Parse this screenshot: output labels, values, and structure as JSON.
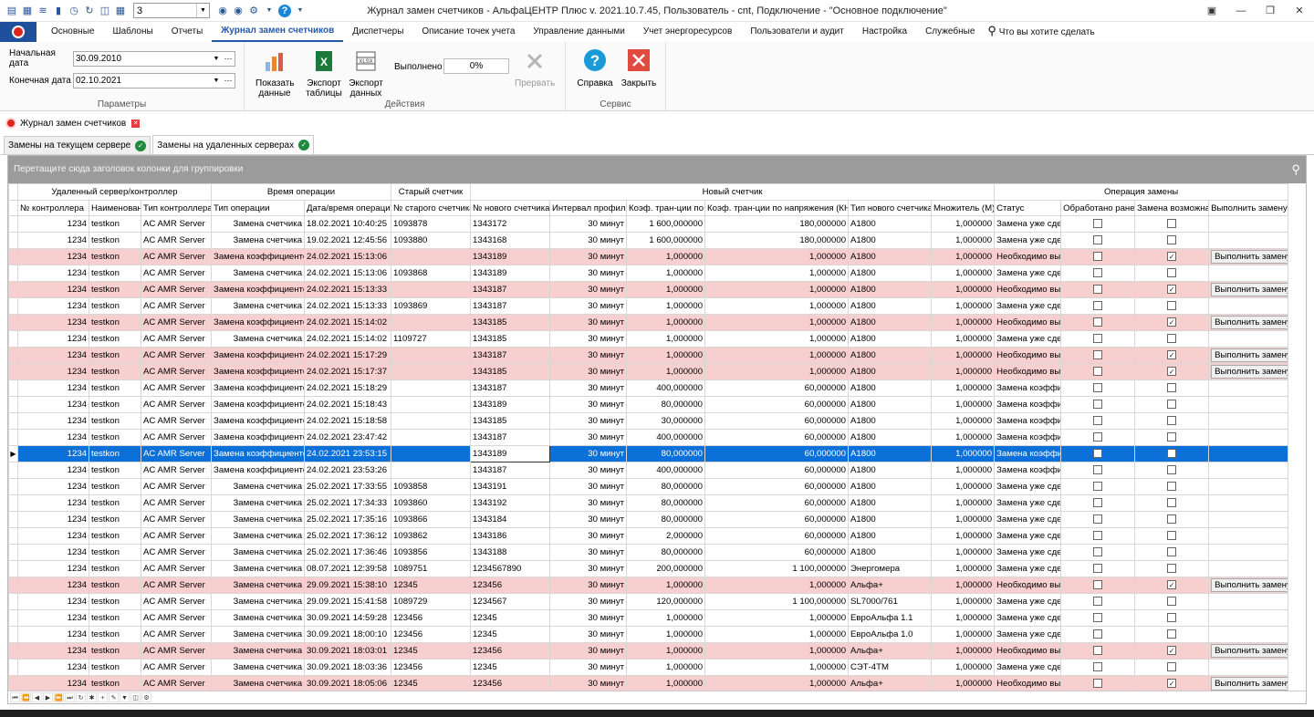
{
  "window": {
    "title": "Журнал замен счетчиков - АльфаЦЕНТР Плюс v. 2021.10.7.45, Пользователь - cnt, Подключение - \"Основное подключение\"",
    "quick_combo_value": "3"
  },
  "menu": {
    "tabs": [
      "Основные",
      "Шаблоны",
      "Отчеты",
      "Журнал замен счетчиков",
      "Диспетчеры",
      "Описание точек учета",
      "Управление данными",
      "Учет энергоресурсов",
      "Пользователи и аудит",
      "Настройка",
      "Служебные"
    ],
    "search_placeholder": "Что вы хотите сделать"
  },
  "ribbon": {
    "params": {
      "start_label": "Начальная дата",
      "start_value": "30.09.2010",
      "end_label": "Конечная дата",
      "end_value": "02.10.2021",
      "group_label": "Параметры"
    },
    "actions": {
      "show_data": "Показать данные",
      "export_table": "Экспорт таблицы",
      "export_data": "Экспорт данных",
      "done_label": "Выполнено",
      "progress": "0%",
      "abort": "Прервать",
      "group_label": "Действия"
    },
    "service": {
      "help": "Справка",
      "close": "Закрыть",
      "group_label": "Сервис"
    }
  },
  "doc_tab": "Журнал замен счетчиков",
  "sub_tabs": [
    "Замены на текущем сервере",
    "Замены на удаленных серверах"
  ],
  "grid": {
    "group_panel_text": "Перетащите сюда заголовок колонки для группировки",
    "bands": [
      "Удаленный сервер/контроллер",
      "Время операции",
      "Старый счетчик",
      "Новый счетчик",
      "Операция замены"
    ],
    "columns": [
      "№ контроллера",
      "Наименован",
      "Тип контроллера",
      "Тип операции",
      "Дата/время операции",
      "№ старого счетчика",
      "№ нового счетчика",
      "Интервал профиля",
      "Коэф. тран-ции по т",
      "Коэф. тран-ции по напряжения (КН)",
      "Тип нового счетчика",
      "Множитель (М)",
      "Статус",
      "Обработано ранее",
      "Замена возможна",
      "Выполнить замену"
    ],
    "button_label": "Выполнить замену",
    "colors": {
      "pink": "#f8cfcf",
      "selected": "#0b71d9"
    },
    "rows": [
      {
        "c": [
          "1234",
          "testkon",
          "AC AMR Server",
          "Замена счетчика",
          "18.02.2021 10:40:25",
          "1093878",
          "1343172",
          "30 минут",
          "1 600,000000",
          "180,000000",
          "A1800",
          "1,000000",
          "Замена уже сдел"
        ],
        "proc": false,
        "poss": false,
        "btn": false,
        "style": "normal"
      },
      {
        "c": [
          "1234",
          "testkon",
          "AC AMR Server",
          "Замена счетчика",
          "19.02.2021 12:45:56",
          "1093880",
          "1343168",
          "30 минут",
          "1 600,000000",
          "180,000000",
          "A1800",
          "1,000000",
          "Замена уже сдел"
        ],
        "proc": false,
        "poss": false,
        "btn": false,
        "style": "normal"
      },
      {
        "c": [
          "1234",
          "testkon",
          "AC AMR Server",
          "Замена коэффициентов",
          "24.02.2021 15:13:06",
          "",
          "1343189",
          "30 минут",
          "1,000000",
          "1,000000",
          "A1800",
          "1,000000",
          "Необходимо вы"
        ],
        "proc": false,
        "poss": true,
        "btn": true,
        "style": "pink"
      },
      {
        "c": [
          "1234",
          "testkon",
          "AC AMR Server",
          "Замена счетчика",
          "24.02.2021 15:13:06",
          "1093868",
          "1343189",
          "30 минут",
          "1,000000",
          "1,000000",
          "A1800",
          "1,000000",
          "Замена уже сдел"
        ],
        "proc": false,
        "poss": false,
        "btn": false,
        "style": "normal"
      },
      {
        "c": [
          "1234",
          "testkon",
          "AC AMR Server",
          "Замена коэффициентов",
          "24.02.2021 15:13:33",
          "",
          "1343187",
          "30 минут",
          "1,000000",
          "1,000000",
          "A1800",
          "1,000000",
          "Необходимо вы"
        ],
        "proc": false,
        "poss": true,
        "btn": true,
        "style": "pink"
      },
      {
        "c": [
          "1234",
          "testkon",
          "AC AMR Server",
          "Замена счетчика",
          "24.02.2021 15:13:33",
          "1093869",
          "1343187",
          "30 минут",
          "1,000000",
          "1,000000",
          "A1800",
          "1,000000",
          "Замена уже сдел"
        ],
        "proc": false,
        "poss": false,
        "btn": false,
        "style": "normal"
      },
      {
        "c": [
          "1234",
          "testkon",
          "AC AMR Server",
          "Замена коэффициентов",
          "24.02.2021 15:14:02",
          "",
          "1343185",
          "30 минут",
          "1,000000",
          "1,000000",
          "A1800",
          "1,000000",
          "Необходимо вы"
        ],
        "proc": false,
        "poss": true,
        "btn": true,
        "style": "pink"
      },
      {
        "c": [
          "1234",
          "testkon",
          "AC AMR Server",
          "Замена счетчика",
          "24.02.2021 15:14:02",
          "1109727",
          "1343185",
          "30 минут",
          "1,000000",
          "1,000000",
          "A1800",
          "1,000000",
          "Замена уже сдел"
        ],
        "proc": false,
        "poss": false,
        "btn": false,
        "style": "normal"
      },
      {
        "c": [
          "1234",
          "testkon",
          "AC AMR Server",
          "Замена коэффициентов",
          "24.02.2021 15:17:29",
          "",
          "1343187",
          "30 минут",
          "1,000000",
          "1,000000",
          "A1800",
          "1,000000",
          "Необходимо вы"
        ],
        "proc": false,
        "poss": true,
        "btn": true,
        "style": "pink"
      },
      {
        "c": [
          "1234",
          "testkon",
          "AC AMR Server",
          "Замена коэффициентов",
          "24.02.2021 15:17:37",
          "",
          "1343185",
          "30 минут",
          "1,000000",
          "1,000000",
          "A1800",
          "1,000000",
          "Необходимо вы"
        ],
        "proc": false,
        "poss": true,
        "btn": true,
        "style": "pink"
      },
      {
        "c": [
          "1234",
          "testkon",
          "AC AMR Server",
          "Замена коэффициентов",
          "24.02.2021 15:18:29",
          "",
          "1343187",
          "30 минут",
          "400,000000",
          "60,000000",
          "A1800",
          "1,000000",
          "Замена коэффи"
        ],
        "proc": false,
        "poss": false,
        "btn": false,
        "style": "normal"
      },
      {
        "c": [
          "1234",
          "testkon",
          "AC AMR Server",
          "Замена коэффициентов",
          "24.02.2021 15:18:43",
          "",
          "1343189",
          "30 минут",
          "80,000000",
          "60,000000",
          "A1800",
          "1,000000",
          "Замена коэффи"
        ],
        "proc": false,
        "poss": false,
        "btn": false,
        "style": "normal"
      },
      {
        "c": [
          "1234",
          "testkon",
          "AC AMR Server",
          "Замена коэффициентов",
          "24.02.2021 15:18:58",
          "",
          "1343185",
          "30 минут",
          "30,000000",
          "60,000000",
          "A1800",
          "1,000000",
          "Замена коэффи"
        ],
        "proc": false,
        "poss": false,
        "btn": false,
        "style": "normal"
      },
      {
        "c": [
          "1234",
          "testkon",
          "AC AMR Server",
          "Замена коэффициентов",
          "24.02.2021 23:47:42",
          "",
          "1343187",
          "30 минут",
          "400,000000",
          "60,000000",
          "A1800",
          "1,000000",
          "Замена коэффи"
        ],
        "proc": false,
        "poss": false,
        "btn": false,
        "style": "normal"
      },
      {
        "c": [
          "1234",
          "testkon",
          "AC AMR Server",
          "Замена коэффициентов",
          "24.02.2021 23:53:15",
          "",
          "1343189",
          "30 минут",
          "80,000000",
          "60,000000",
          "A1800",
          "1,000000",
          "Замена коэффи"
        ],
        "proc": false,
        "poss": false,
        "btn": false,
        "style": "sel"
      },
      {
        "c": [
          "1234",
          "testkon",
          "AC AMR Server",
          "Замена коэффициентов",
          "24.02.2021 23:53:26",
          "",
          "1343187",
          "30 минут",
          "400,000000",
          "60,000000",
          "A1800",
          "1,000000",
          "Замена коэффи"
        ],
        "proc": false,
        "poss": false,
        "btn": false,
        "style": "normal"
      },
      {
        "c": [
          "1234",
          "testkon",
          "AC AMR Server",
          "Замена счетчика",
          "25.02.2021 17:33:55",
          "1093858",
          "1343191",
          "30 минут",
          "80,000000",
          "60,000000",
          "A1800",
          "1,000000",
          "Замена уже сдел"
        ],
        "proc": false,
        "poss": false,
        "btn": false,
        "style": "normal"
      },
      {
        "c": [
          "1234",
          "testkon",
          "AC AMR Server",
          "Замена счетчика",
          "25.02.2021 17:34:33",
          "1093860",
          "1343192",
          "30 минут",
          "80,000000",
          "60,000000",
          "A1800",
          "1,000000",
          "Замена уже сдел"
        ],
        "proc": false,
        "poss": false,
        "btn": false,
        "style": "normal"
      },
      {
        "c": [
          "1234",
          "testkon",
          "AC AMR Server",
          "Замена счетчика",
          "25.02.2021 17:35:16",
          "1093866",
          "1343184",
          "30 минут",
          "80,000000",
          "60,000000",
          "A1800",
          "1,000000",
          "Замена уже сдел"
        ],
        "proc": false,
        "poss": false,
        "btn": false,
        "style": "normal"
      },
      {
        "c": [
          "1234",
          "testkon",
          "AC AMR Server",
          "Замена счетчика",
          "25.02.2021 17:36:12",
          "1093862",
          "1343186",
          "30 минут",
          "2,000000",
          "60,000000",
          "A1800",
          "1,000000",
          "Замена уже сдел"
        ],
        "proc": false,
        "poss": false,
        "btn": false,
        "style": "normal"
      },
      {
        "c": [
          "1234",
          "testkon",
          "AC AMR Server",
          "Замена счетчика",
          "25.02.2021 17:36:46",
          "1093856",
          "1343188",
          "30 минут",
          "80,000000",
          "60,000000",
          "A1800",
          "1,000000",
          "Замена уже сдел"
        ],
        "proc": false,
        "poss": false,
        "btn": false,
        "style": "normal"
      },
      {
        "c": [
          "1234",
          "testkon",
          "AC AMR Server",
          "Замена счетчика",
          "08.07.2021 12:39:58",
          "1089751",
          "1234567890",
          "30 минут",
          "200,000000",
          "1 100,000000",
          "Энергомера",
          "1,000000",
          "Замена уже сдел"
        ],
        "proc": false,
        "poss": false,
        "btn": false,
        "style": "normal"
      },
      {
        "c": [
          "1234",
          "testkon",
          "AC AMR Server",
          "Замена счетчика",
          "29.09.2021 15:38:10",
          "12345",
          "123456",
          "30 минут",
          "1,000000",
          "1,000000",
          "Альфа+",
          "1,000000",
          "Необходимо вы"
        ],
        "proc": false,
        "poss": true,
        "btn": true,
        "style": "pink"
      },
      {
        "c": [
          "1234",
          "testkon",
          "AC AMR Server",
          "Замена счетчика",
          "29.09.2021 15:41:58",
          "1089729",
          "1234567",
          "30 минут",
          "120,000000",
          "1 100,000000",
          "SL7000/761",
          "1,000000",
          "Замена уже сдел"
        ],
        "proc": false,
        "poss": false,
        "btn": false,
        "style": "normal"
      },
      {
        "c": [
          "1234",
          "testkon",
          "AC AMR Server",
          "Замена счетчика",
          "30.09.2021 14:59:28",
          "123456",
          "12345",
          "30 минут",
          "1,000000",
          "1,000000",
          "ЕвроАльфа 1.1",
          "1,000000",
          "Замена уже сдел"
        ],
        "proc": false,
        "poss": false,
        "btn": false,
        "style": "normal"
      },
      {
        "c": [
          "1234",
          "testkon",
          "AC AMR Server",
          "Замена счетчика",
          "30.09.2021 18:00:10",
          "123456",
          "12345",
          "30 минут",
          "1,000000",
          "1,000000",
          "ЕвроАльфа 1.0",
          "1,000000",
          "Замена уже сдел"
        ],
        "proc": false,
        "poss": false,
        "btn": false,
        "style": "normal"
      },
      {
        "c": [
          "1234",
          "testkon",
          "AC AMR Server",
          "Замена счетчика",
          "30.09.2021 18:03:01",
          "12345",
          "123456",
          "30 минут",
          "1,000000",
          "1,000000",
          "Альфа+",
          "1,000000",
          "Необходимо вы"
        ],
        "proc": false,
        "poss": true,
        "btn": true,
        "style": "pink"
      },
      {
        "c": [
          "1234",
          "testkon",
          "AC AMR Server",
          "Замена счетчика",
          "30.09.2021 18:03:36",
          "123456",
          "12345",
          "30 минут",
          "1,000000",
          "1,000000",
          "СЭТ-4ТМ",
          "1,000000",
          "Замена уже сдел"
        ],
        "proc": false,
        "poss": false,
        "btn": false,
        "style": "normal"
      },
      {
        "c": [
          "1234",
          "testkon",
          "AC AMR Server",
          "Замена счетчика",
          "30.09.2021 18:05:06",
          "12345",
          "123456",
          "30 минут",
          "1,000000",
          "1,000000",
          "Альфа+",
          "1,000000",
          "Необходимо вы"
        ],
        "proc": false,
        "poss": true,
        "btn": true,
        "style": "pink"
      }
    ]
  }
}
